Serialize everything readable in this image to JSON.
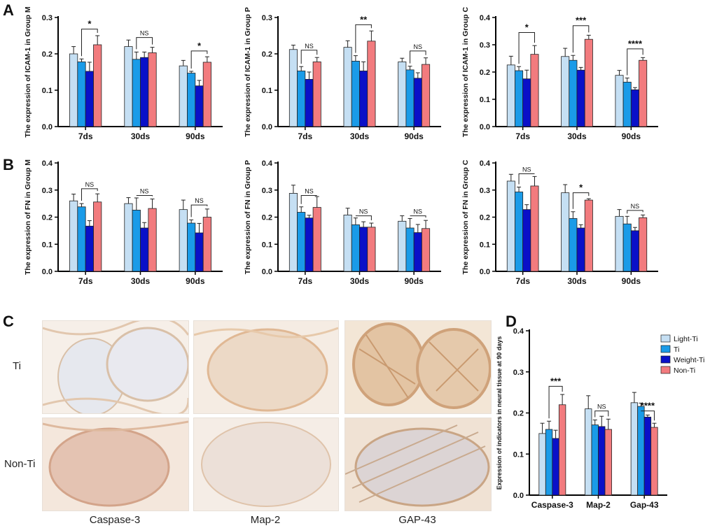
{
  "colors": {
    "light_ti": "#c5dff3",
    "ti": "#1a9be8",
    "weight_ti": "#0a10c8",
    "non_ti": "#f27b7e"
  },
  "panel_labels": {
    "A": "A",
    "B": "B",
    "C": "C",
    "D": "D"
  },
  "histology": {
    "row_labels": [
      "Ti",
      "Non-Ti"
    ],
    "col_labels": [
      "Caspase-3",
      "Map-2",
      "GAP-43"
    ]
  },
  "chart_data": [
    {
      "id": "A1",
      "type": "bar",
      "ylabel": "The expression of ICAM-1 in Group M",
      "ylim": [
        0,
        0.3
      ],
      "yticks": [
        "0.0",
        "0.1",
        "0.2",
        "0.3"
      ],
      "categories": [
        "7ds",
        "30ds",
        "90ds"
      ],
      "series": [
        {
          "name": "Light-Ti",
          "values": [
            0.2,
            0.22,
            0.167
          ],
          "errors": [
            0.02,
            0.018,
            0.015
          ]
        },
        {
          "name": "Ti",
          "values": [
            0.178,
            0.185,
            0.147
          ],
          "errors": [
            0.008,
            0.02,
            0.005
          ]
        },
        {
          "name": "Weight-Ti",
          "values": [
            0.152,
            0.19,
            0.112
          ],
          "errors": [
            0.025,
            0.015,
            0.015
          ]
        },
        {
          "name": "Non-Ti",
          "values": [
            0.225,
            0.203,
            0.177
          ],
          "errors": [
            0.025,
            0.015,
            0.015
          ]
        }
      ],
      "significance": [
        {
          "category": "7ds",
          "label": "*",
          "height": 0.268
        },
        {
          "category": "30ds",
          "label": "NS",
          "height": 0.245
        },
        {
          "category": "90ds",
          "label": "*",
          "height": 0.208
        }
      ]
    },
    {
      "id": "A2",
      "type": "bar",
      "ylabel": "The expression of ICAM-1 in Group P",
      "ylim": [
        0,
        0.3
      ],
      "yticks": [
        "0.0",
        "0.1",
        "0.2",
        "0.3"
      ],
      "categories": [
        "7ds",
        "30ds",
        "90ds"
      ],
      "series": [
        {
          "name": "Light-Ti",
          "values": [
            0.212,
            0.218,
            0.178
          ],
          "errors": [
            0.012,
            0.018,
            0.01
          ]
        },
        {
          "name": "Ti",
          "values": [
            0.153,
            0.18,
            0.156
          ],
          "errors": [
            0.012,
            0.015,
            0.01
          ]
        },
        {
          "name": "Weight-Ti",
          "values": [
            0.13,
            0.153,
            0.133
          ],
          "errors": [
            0.02,
            0.025,
            0.015
          ]
        },
        {
          "name": "Non-Ti",
          "values": [
            0.178,
            0.235,
            0.171
          ],
          "errors": [
            0.012,
            0.028,
            0.018
          ]
        }
      ],
      "significance": [
        {
          "category": "7ds",
          "label": "NS",
          "height": 0.21
        },
        {
          "category": "30ds",
          "label": "**",
          "height": 0.28
        },
        {
          "category": "90ds",
          "label": "NS",
          "height": 0.208
        }
      ]
    },
    {
      "id": "A3",
      "type": "bar",
      "ylabel": "The expression of ICAM-1 in Group C",
      "ylim": [
        0,
        0.4
      ],
      "yticks": [
        "0.0",
        "0.1",
        "0.2",
        "0.3",
        "0.4"
      ],
      "categories": [
        "7ds",
        "30ds",
        "90ds"
      ],
      "series": [
        {
          "name": "Light-Ti",
          "values": [
            0.226,
            0.257,
            0.188
          ],
          "errors": [
            0.032,
            0.03,
            0.018
          ]
        },
        {
          "name": "Ti",
          "values": [
            0.205,
            0.243,
            0.163
          ],
          "errors": [
            0.015,
            0.018,
            0.015
          ]
        },
        {
          "name": "Weight-Ti",
          "values": [
            0.175,
            0.207,
            0.135
          ],
          "errors": [
            0.032,
            0.01,
            0.008
          ]
        },
        {
          "name": "Non-Ti",
          "values": [
            0.265,
            0.32,
            0.243
          ],
          "errors": [
            0.032,
            0.015,
            0.01
          ]
        }
      ],
      "significance": [
        {
          "category": "7ds",
          "label": "*",
          "height": 0.345
        },
        {
          "category": "30ds",
          "label": "***",
          "height": 0.37
        },
        {
          "category": "90ds",
          "label": "****",
          "height": 0.285
        }
      ]
    },
    {
      "id": "B1",
      "type": "bar",
      "ylabel": "The expression of FN in Group M",
      "ylim": [
        0,
        0.4
      ],
      "yticks": [
        "0.0",
        "0.1",
        "0.2",
        "0.3",
        "0.4"
      ],
      "categories": [
        "7ds",
        "30ds",
        "90ds"
      ],
      "series": [
        {
          "name": "Light-Ti",
          "values": [
            0.26,
            0.25,
            0.228
          ],
          "errors": [
            0.025,
            0.022,
            0.035
          ]
        },
        {
          "name": "Ti",
          "values": [
            0.238,
            0.226,
            0.178
          ],
          "errors": [
            0.012,
            0.045,
            0.012
          ]
        },
        {
          "name": "Weight-Ti",
          "values": [
            0.167,
            0.16,
            0.142
          ],
          "errors": [
            0.02,
            0.02,
            0.035
          ]
        },
        {
          "name": "Non-Ti",
          "values": [
            0.256,
            0.232,
            0.2
          ],
          "errors": [
            0.03,
            0.035,
            0.03
          ]
        }
      ],
      "significance": [
        {
          "category": "7ds",
          "label": "NS",
          "height": 0.305
        },
        {
          "category": "30ds",
          "label": "NS",
          "height": 0.28
        },
        {
          "category": "90ds",
          "label": "NS",
          "height": 0.245
        }
      ]
    },
    {
      "id": "B2",
      "type": "bar",
      "ylabel": "The expression of FN in Group P",
      "ylim": [
        0,
        0.4
      ],
      "yticks": [
        "0.0",
        "0.1",
        "0.2",
        "0.3",
        "0.4"
      ],
      "categories": [
        "7ds",
        "30ds",
        "90ds"
      ],
      "series": [
        {
          "name": "Light-Ti",
          "values": [
            0.288,
            0.208,
            0.185
          ],
          "errors": [
            0.03,
            0.025,
            0.02
          ]
        },
        {
          "name": "Ti",
          "values": [
            0.218,
            0.172,
            0.16
          ],
          "errors": [
            0.02,
            0.025,
            0.035
          ]
        },
        {
          "name": "Weight-Ti",
          "values": [
            0.197,
            0.163,
            0.143
          ],
          "errors": [
            0.01,
            0.02,
            0.03
          ]
        },
        {
          "name": "Non-Ti",
          "values": [
            0.236,
            0.163,
            0.158
          ],
          "errors": [
            0.04,
            0.015,
            0.03
          ]
        }
      ],
      "significance": [
        {
          "category": "7ds",
          "label": "NS",
          "height": 0.28
        },
        {
          "category": "30ds",
          "label": "NS",
          "height": 0.205
        },
        {
          "category": "90ds",
          "label": "NS",
          "height": 0.205
        }
      ]
    },
    {
      "id": "B3",
      "type": "bar",
      "ylabel": "The expression of FN in Group C",
      "ylim": [
        0,
        0.4
      ],
      "yticks": [
        "0.0",
        "0.1",
        "0.2",
        "0.3",
        "0.4"
      ],
      "categories": [
        "7ds",
        "30ds",
        "90ds"
      ],
      "series": [
        {
          "name": "Light-Ti",
          "values": [
            0.333,
            0.29,
            0.203
          ],
          "errors": [
            0.025,
            0.03,
            0.025
          ]
        },
        {
          "name": "Ti",
          "values": [
            0.293,
            0.195,
            0.175
          ],
          "errors": [
            0.018,
            0.025,
            0.028
          ]
        },
        {
          "name": "Weight-Ti",
          "values": [
            0.228,
            0.16,
            0.15
          ],
          "errors": [
            0.018,
            0.012,
            0.012
          ]
        },
        {
          "name": "Non-Ti",
          "values": [
            0.315,
            0.263,
            0.198
          ],
          "errors": [
            0.035,
            0.005,
            0.01
          ]
        }
      ],
      "significance": [
        {
          "category": "7ds",
          "label": "NS",
          "height": 0.36
        },
        {
          "category": "30ds",
          "label": "*",
          "height": 0.29
        },
        {
          "category": "90ds",
          "label": "NS",
          "height": 0.225
        }
      ]
    },
    {
      "id": "D",
      "type": "bar",
      "ylabel": "Expression of indicators in neural tissue at 90 days",
      "ylim": [
        0,
        0.4
      ],
      "yticks": [
        "0.0",
        "0.1",
        "0.2",
        "0.3",
        "0.4"
      ],
      "categories": [
        "Caspase-3",
        "Map-2",
        "Gap-43"
      ],
      "legend": [
        "Light-Ti",
        "Ti",
        "Weight-Ti",
        "Non-Ti"
      ],
      "legend_position": "top-right",
      "series": [
        {
          "name": "Light-Ti",
          "values": [
            0.15,
            0.21,
            0.225
          ],
          "errors": [
            0.025,
            0.032,
            0.025
          ]
        },
        {
          "name": "Ti",
          "values": [
            0.16,
            0.171,
            0.216
          ],
          "errors": [
            0.02,
            0.012,
            0.008
          ]
        },
        {
          "name": "Weight-Ti",
          "values": [
            0.138,
            0.167,
            0.19
          ],
          "errors": [
            0.02,
            0.025,
            0.005
          ]
        },
        {
          "name": "Non-Ti",
          "values": [
            0.22,
            0.16,
            0.165
          ],
          "errors": [
            0.025,
            0.025,
            0.01
          ]
        }
      ],
      "significance": [
        {
          "category": "Caspase-3",
          "label": "***",
          "height": 0.265
        },
        {
          "category": "Map-2",
          "label": "NS",
          "height": 0.205
        },
        {
          "category": "Gap-43",
          "label": "****",
          "height": 0.205
        }
      ]
    }
  ]
}
